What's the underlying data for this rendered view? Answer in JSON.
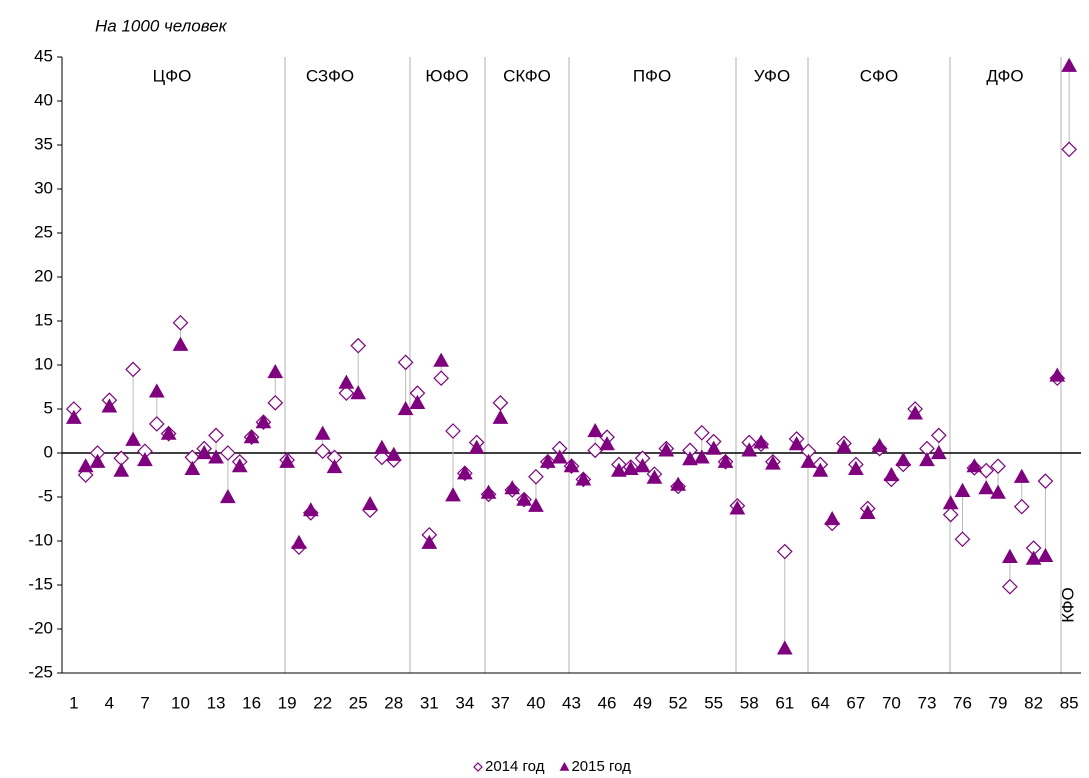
{
  "chart_data": {
    "type": "scatter",
    "subtitle": "На 1000 человек",
    "x": [
      1,
      2,
      3,
      4,
      5,
      6,
      7,
      8,
      9,
      10,
      11,
      12,
      13,
      14,
      15,
      16,
      17,
      18,
      19,
      20,
      21,
      22,
      23,
      24,
      25,
      26,
      27,
      28,
      29,
      30,
      31,
      32,
      33,
      34,
      35,
      36,
      37,
      38,
      39,
      40,
      41,
      42,
      43,
      44,
      45,
      46,
      47,
      48,
      49,
      50,
      51,
      52,
      53,
      54,
      55,
      56,
      57,
      58,
      59,
      60,
      61,
      62,
      63,
      64,
      65,
      66,
      67,
      68,
      69,
      70,
      71,
      72,
      73,
      74,
      75,
      76,
      77,
      78,
      79,
      80,
      81,
      82,
      83,
      84,
      85
    ],
    "xlim": [
      0,
      86
    ],
    "xticks": [
      1,
      4,
      7,
      10,
      13,
      16,
      19,
      22,
      25,
      28,
      31,
      34,
      37,
      40,
      43,
      46,
      49,
      52,
      55,
      58,
      61,
      64,
      67,
      70,
      73,
      76,
      79,
      82,
      85
    ],
    "ylim": [
      -25,
      45
    ],
    "yticks": [
      -25,
      -20,
      -15,
      -10,
      -5,
      0,
      5,
      10,
      15,
      20,
      25,
      30,
      35,
      40,
      45
    ],
    "districts": [
      "ЦФО",
      "СЗФО",
      "ЮФО",
      "СКФО",
      "ПФО",
      "УФО",
      "СФО",
      "ДФО",
      "КФО"
    ],
    "series": [
      {
        "name": "2014 год",
        "color": "#800080",
        "marker": "diamond-open",
        "values": [
          5,
          -2.5,
          0,
          6,
          -0.6,
          9.5,
          0.2,
          3.3,
          2.2,
          14.8,
          -0.5,
          0.5,
          2,
          0,
          -1,
          1.8,
          3.5,
          5.7,
          -0.8,
          -10.7,
          -6.8,
          0.2,
          -0.5,
          6.8,
          12.2,
          -6.5,
          -0.5,
          -0.8,
          10.3,
          6.8,
          -9.3,
          8.5,
          2.5,
          -2.3,
          1.2,
          -4.7,
          5.7,
          -4.2,
          -5.3,
          -2.7,
          -1,
          0.5,
          -1.5,
          -3,
          0.3,
          1.8,
          -1.3,
          -1.6,
          -0.6,
          -2.4,
          0.5,
          -3.8,
          0.3,
          2.3,
          1.3,
          -1,
          -6,
          1.2,
          1,
          -1,
          -11.2,
          1.6,
          0.2,
          -1.3,
          -8,
          1.1,
          -1.3,
          -6.3,
          0.5,
          -3,
          -1.3,
          5,
          0.5,
          2,
          -7,
          -9.8,
          -1.7,
          -2,
          -1.5,
          -15.2,
          -6.1,
          -10.8,
          -3.2,
          8.5,
          34.5
        ]
      },
      {
        "name": "2015 год",
        "color": "#800080",
        "marker": "triangle",
        "values": [
          4,
          -1.5,
          -1,
          5.3,
          -2,
          1.5,
          -0.8,
          7,
          2.2,
          12.3,
          -1.8,
          0,
          -0.5,
          -5,
          -1.5,
          1.8,
          3.5,
          9.2,
          -1,
          -10.2,
          -6.5,
          2.2,
          -1.6,
          8,
          6.8,
          -5.8,
          0.6,
          -0.2,
          5,
          5.7,
          -10.2,
          10.5,
          -4.8,
          -2.3,
          0.6,
          -4.5,
          4,
          -4,
          -5.3,
          -6,
          -1,
          -0.5,
          -1.5,
          -3,
          2.5,
          1,
          -2,
          -1.8,
          -1.5,
          -2.8,
          0.3,
          -3.6,
          -0.7,
          -0.5,
          0.5,
          -1,
          -6.3,
          0.3,
          1.2,
          -1.2,
          -22.2,
          1,
          -1,
          -2,
          -7.5,
          0.7,
          -1.8,
          -6.8,
          0.8,
          -2.5,
          -0.8,
          4.5,
          -0.8,
          0,
          -5.7,
          -4.3,
          -1.5,
          -4,
          -4.5,
          -11.8,
          -2.7,
          -12,
          -11.7,
          8.8,
          44
        ]
      }
    ]
  }
}
